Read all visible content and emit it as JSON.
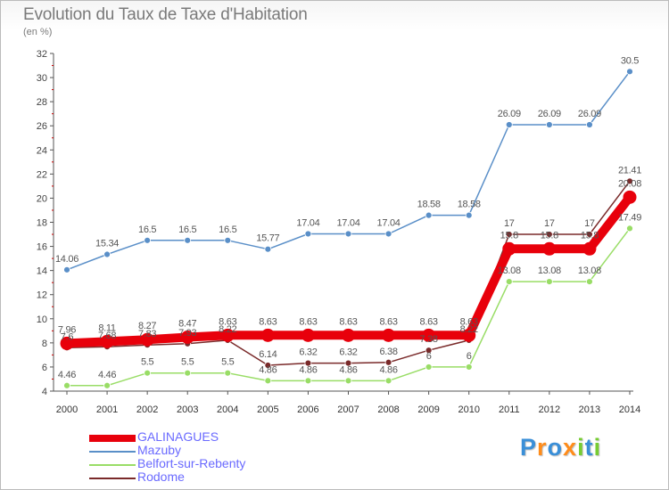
{
  "chart_data": {
    "type": "line",
    "title": "Evolution du Taux de Taxe d'Habitation",
    "subtitle": "(en %)",
    "x": [
      "2000",
      "2001",
      "2002",
      "2003",
      "2004",
      "2005",
      "2006",
      "2007",
      "2008",
      "2009",
      "2010",
      "2011",
      "2012",
      "2013",
      "2014"
    ],
    "ylim": [
      4,
      32
    ],
    "yticks": [
      4,
      6,
      8,
      10,
      12,
      14,
      16,
      18,
      20,
      22,
      24,
      26,
      28,
      30,
      32
    ],
    "grid": false,
    "legend_position": "bottom-left",
    "series": [
      {
        "name": "GALINAGUES",
        "color": "#e8000b",
        "values": [
          7.96,
          8.11,
          8.27,
          8.47,
          8.63,
          8.63,
          8.63,
          8.63,
          8.63,
          8.63,
          8.63,
          15.8,
          15.8,
          15.8,
          20.08
        ],
        "labels": [
          "7.96",
          "8.11",
          "8.27",
          "8.47",
          "8.63",
          "8.63",
          "8.63",
          "8.63",
          "8.63",
          "8.63",
          "8.63",
          "15.8",
          "15.8",
          "15.8",
          "20.08"
        ]
      },
      {
        "name": "Mazuby",
        "color": "#5a8fc8",
        "values": [
          14.06,
          15.34,
          16.5,
          16.5,
          16.5,
          15.77,
          17.04,
          17.04,
          17.04,
          18.58,
          18.58,
          26.09,
          26.09,
          26.09,
          30.5
        ],
        "labels": [
          "14.06",
          "15.34",
          "16.5",
          "16.5",
          "16.5",
          "15.77",
          "17.04",
          "17.04",
          "17.04",
          "18.58",
          "18.58",
          "26.09",
          "26.09",
          "26.09",
          "30.5"
        ]
      },
      {
        "name": "Belfort-sur-Rebenty",
        "color": "#99dd66",
        "values": [
          4.46,
          4.46,
          5.5,
          5.5,
          5.5,
          4.86,
          4.86,
          4.86,
          4.86,
          6,
          6,
          13.08,
          13.08,
          13.08,
          17.49
        ],
        "labels": [
          "4.46",
          "4.46",
          "5.5",
          "5.5",
          "5.5",
          "4.86",
          "4.86",
          "4.86",
          "4.86",
          "6",
          "6",
          "13.08",
          "13.08",
          "13.08",
          "17.49"
        ]
      },
      {
        "name": "Rodome",
        "color": "#7a2a2a",
        "values": [
          7.6,
          7.68,
          7.83,
          7.93,
          8.22,
          6.14,
          6.32,
          6.32,
          6.38,
          7.38,
          8.22,
          17,
          17,
          17,
          21.41
        ],
        "labels": [
          "7.6",
          "7.68",
          "7.83",
          "7.93",
          "8.22",
          "6.14",
          "6.32",
          "6.32",
          "6.38",
          "7.38",
          "8.22",
          "17",
          "17",
          "17",
          "21.41"
        ]
      }
    ]
  },
  "legend": {
    "items": [
      {
        "label": "GALINAGUES",
        "color": "#e8000b"
      },
      {
        "label": "Mazuby",
        "color": "#5a8fc8"
      },
      {
        "label": "Belfort-sur-Rebenty",
        "color": "#99dd66"
      },
      {
        "label": "Rodome",
        "color": "#7a2a2a"
      }
    ],
    "text_color": "#6a6aff"
  },
  "logo": {
    "letters": [
      "P",
      "r",
      "o",
      "x",
      "i",
      "t",
      "i"
    ],
    "colors": [
      "#3a8fd8",
      "#ff8c1a",
      "#3a8fd8",
      "#ff8c1a",
      "#77cc33",
      "#3a8fd8",
      "#77cc33"
    ]
  }
}
